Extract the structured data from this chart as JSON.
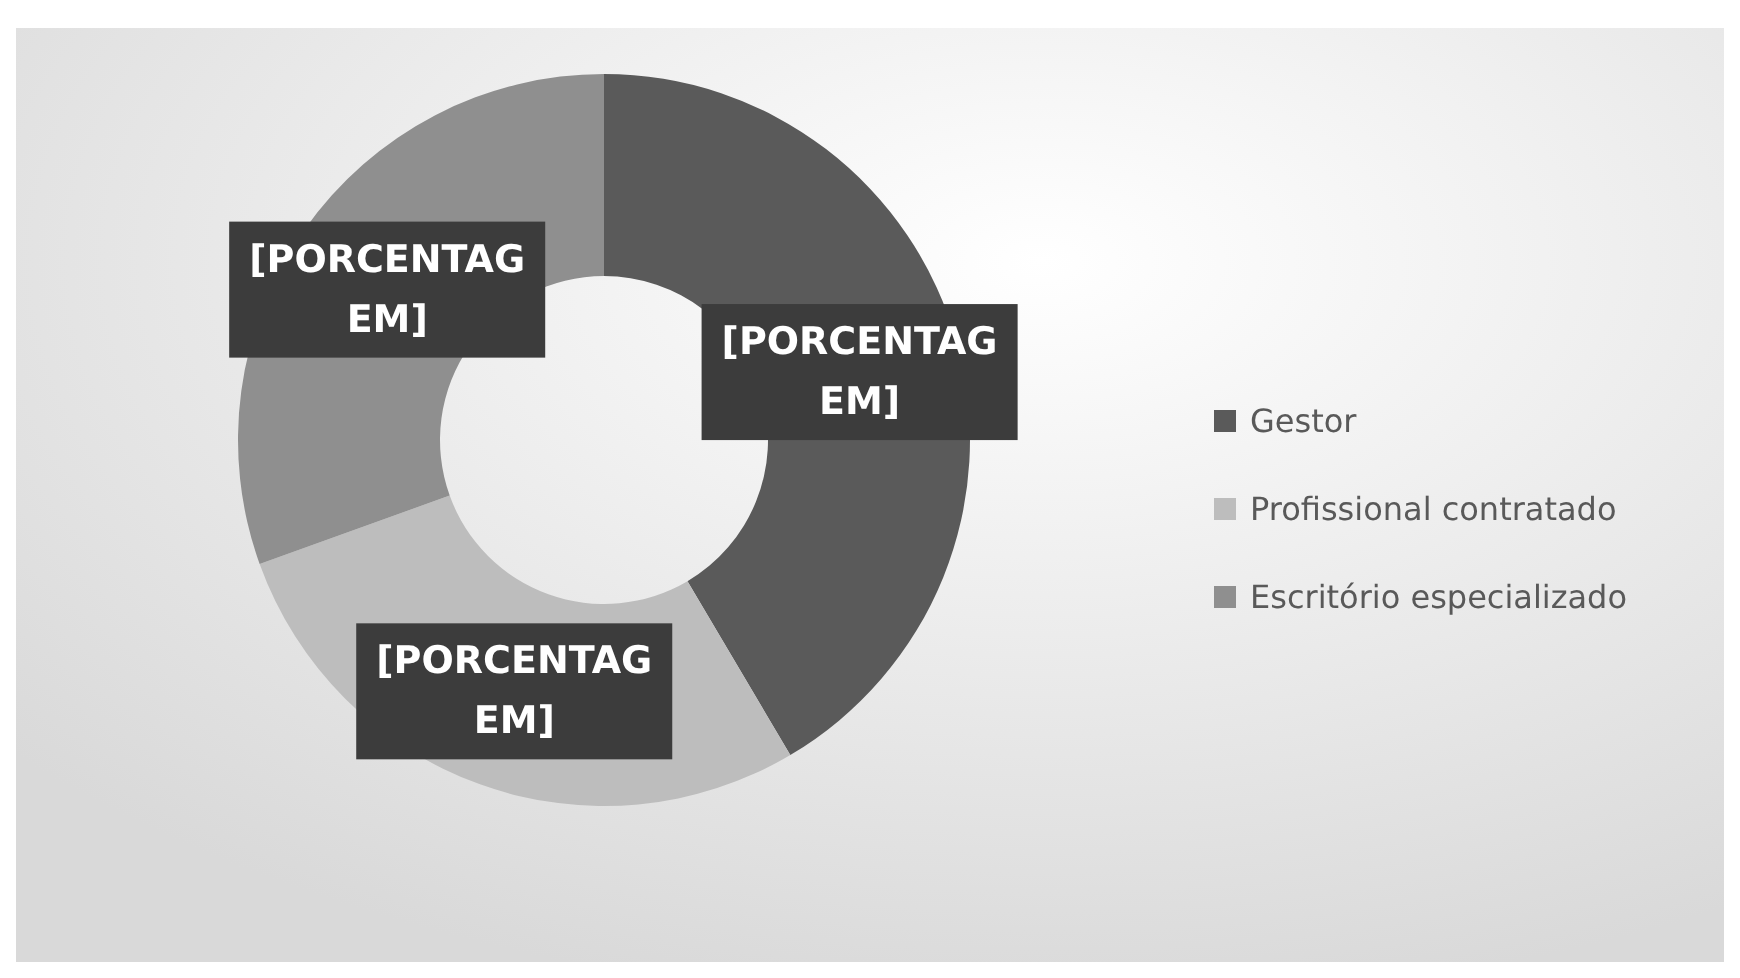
{
  "chart_data": {
    "type": "donut",
    "categories": [
      "Gestor",
      "Profissional contratado",
      "Escritório especializado"
    ],
    "values": [
      41.5,
      28,
      30.5
    ],
    "colors": [
      "#5a5a5a",
      "#bdbdbd",
      "#8f8f8f"
    ],
    "value_labels": [
      "[PORCENTAGEM]",
      "[PORCENTAGEM]",
      "[PORCENTAGEM]"
    ],
    "legend": "right"
  }
}
